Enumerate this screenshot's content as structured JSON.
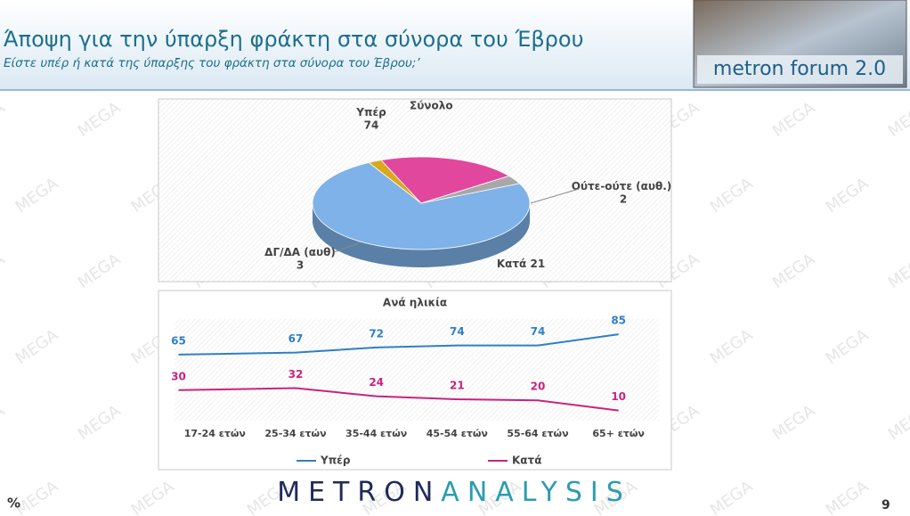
{
  "header": {
    "title": "Άποψη για την ύπαρξη φράκτη στα σύνορα του Έβρου",
    "subtitle": "Είστε υπέρ ή κατά της ύπαρξης του φράκτη στα σύνορα του Έβρου;’",
    "logo": "metron forum 2.0"
  },
  "watermark": "MEGA",
  "chart_data": [
    {
      "type": "pie",
      "title": "Σύνολο",
      "categories": [
        "Υπέρ",
        "Ούτε-ούτε (αυθ.)",
        "Κατά",
        "ΔΓ/ΔΑ (αυθ)"
      ],
      "values": [
        74,
        2,
        21,
        3
      ],
      "colors": [
        "#7eb2e8",
        "#d9a91c",
        "#e2479e",
        "#a8a8a8"
      ]
    },
    {
      "type": "line",
      "title": "Ανά ηλικία",
      "categories": [
        "17-24 ετών",
        "25-34 ετών",
        "35-44 ετών",
        "45-54 ετών",
        "55-64 ετών",
        "65+ ετών"
      ],
      "series": [
        {
          "name": "Υπέρ",
          "color": "#2f7fc8",
          "values": [
            65,
            67,
            72,
            74,
            74,
            85
          ]
        },
        {
          "name": "Κατά",
          "color": "#c8237f",
          "values": [
            30,
            32,
            24,
            21,
            20,
            10
          ]
        }
      ],
      "ylim": [
        0,
        100
      ],
      "legend": "bottom"
    }
  ],
  "footer": {
    "unit": "%",
    "brand_left": "METRON",
    "brand_right": "ANALYSIS",
    "page": "9"
  }
}
